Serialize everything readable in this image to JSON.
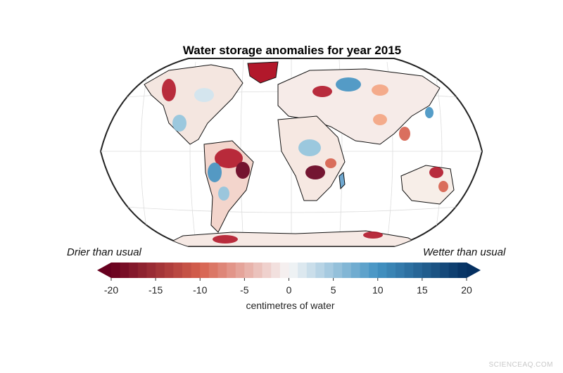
{
  "title": "Water storage anomalies for year 2015",
  "legend": {
    "drier_label": "Drier than usual",
    "wetter_label": "Wetter than usual",
    "unit_label": "centimetres of water",
    "ticks": [
      "-20",
      "-15",
      "-10",
      "-5",
      "0",
      "5",
      "10",
      "15",
      "20"
    ],
    "min": -20,
    "max": 20,
    "colors": {
      "dry_extreme": "#67001f",
      "dry": "#d6604d",
      "neutral": "#f7f7f7",
      "wet": "#4393c3",
      "wet_extreme": "#053061"
    }
  },
  "watermark": "SCIENCEAQ.COM"
}
